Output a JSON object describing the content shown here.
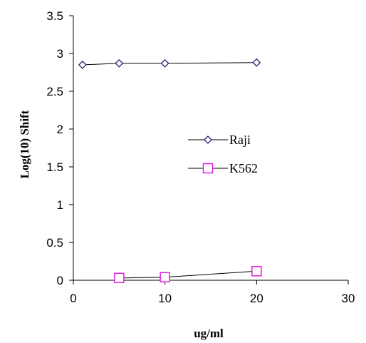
{
  "chart_data": {
    "type": "line",
    "title": "",
    "xlabel": "ug/ml",
    "ylabel": "Log(10) Shift",
    "xlim": [
      0,
      30
    ],
    "ylim": [
      0,
      3.5
    ],
    "xticks": [
      "0",
      "10",
      "20",
      "30"
    ],
    "yticks": [
      "0",
      "0.5",
      "1",
      "1.5",
      "2",
      "2.5",
      "3",
      "3.5"
    ],
    "grid": false,
    "legend_position": "center-right",
    "series": [
      {
        "name": "Raji",
        "marker": "diamond",
        "marker_color": "#1F1F7A",
        "line_color": "#000000",
        "x": [
          1,
          5,
          10,
          20
        ],
        "y": [
          2.85,
          2.87,
          2.87,
          2.88
        ]
      },
      {
        "name": "K562",
        "marker": "square",
        "marker_color": "#E020E0",
        "line_color": "#000000",
        "x": [
          5,
          10,
          20
        ],
        "y": [
          0.03,
          0.04,
          0.12
        ]
      }
    ]
  }
}
